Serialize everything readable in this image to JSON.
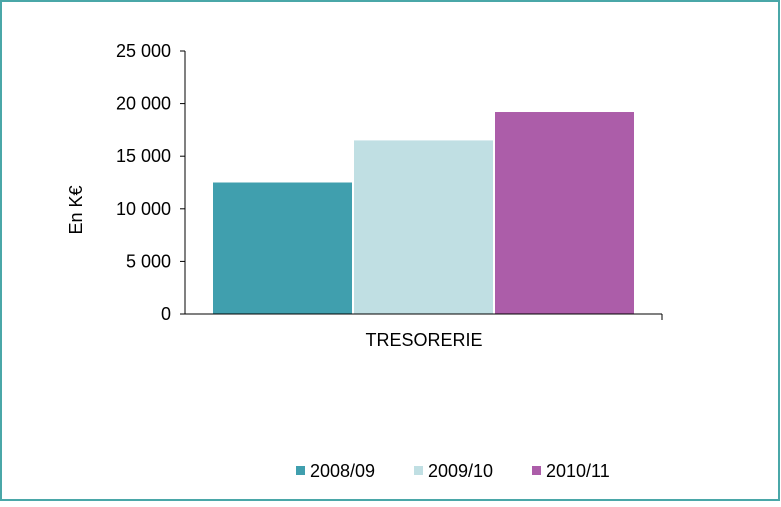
{
  "chart_data": {
    "type": "bar",
    "categories": [
      "TRESORERIE"
    ],
    "series": [
      {
        "name": "2008/09",
        "values": [
          12500
        ],
        "color": "#409fae"
      },
      {
        "name": "2009/10",
        "values": [
          16500
        ],
        "color": "#c0dfe3"
      },
      {
        "name": "2010/11",
        "values": [
          19200
        ],
        "color": "#ac5da9"
      }
    ],
    "ylabel": "En K€",
    "xlabel": "",
    "ylim": [
      0,
      25000
    ],
    "yticks": [
      0,
      5000,
      10000,
      15000,
      20000,
      25000
    ],
    "ytick_labels": [
      "0",
      "5 000",
      "10 000",
      "15 000",
      "20 000",
      "25 000"
    ],
    "legend": "bottom",
    "grid": false,
    "border_color": "#4aa7a8"
  }
}
